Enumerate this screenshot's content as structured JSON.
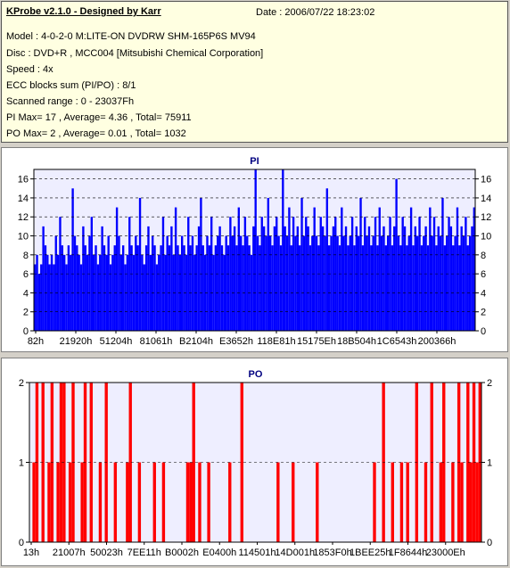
{
  "header": {
    "title": "KProbe v2.1.0 - Designed by Karr",
    "date": "Date : 2006/07/22 18:23:02",
    "lines": [
      "Model : 4-0-2-0 M:LITE-ON DVDRW SHM-165P6S MV94",
      "Disc : DVD+R , MCC004 [Mitsubishi Chemical Corporation]",
      "Speed : 4x",
      "ECC blocks sum (PI/PO) : 8/1",
      "Scanned range : 0 - 23037Fh",
      "PI Max= 17 , Average= 4.36 , Total= 75911",
      "PO Max= 2 , Average= 0.01 , Total= 1032"
    ]
  },
  "colors": {
    "pi_bar": "#0000ff",
    "po_bar": "#ff0000",
    "plot_bg": "#eeeeff",
    "grid": "#000000",
    "title": "#000080"
  },
  "chart_data": [
    {
      "type": "bar",
      "title": "PI",
      "ylim": [
        0,
        17
      ],
      "yticks": [
        0,
        2,
        4,
        6,
        8,
        10,
        12,
        14,
        16
      ],
      "xlim": [
        0,
        2293887
      ],
      "xticks": [
        "82h",
        "21920h",
        "51204h",
        "81061h",
        "B2104h",
        "E3652h",
        "118E81h",
        "15175Eh",
        "18B504h",
        "1C6543h",
        "200366h"
      ],
      "grid": "dashed horizontal",
      "series": [
        {
          "values": [
            7,
            8,
            6,
            7,
            11,
            9,
            8,
            7,
            8,
            7,
            10,
            8,
            12,
            9,
            8,
            7,
            9,
            8,
            15,
            10,
            9,
            8,
            7,
            11,
            9,
            8,
            10,
            12,
            8,
            9,
            7,
            8,
            11,
            9,
            8,
            10,
            7,
            8,
            9,
            13,
            10,
            8,
            9,
            7,
            8,
            12,
            9,
            8,
            10,
            9,
            14,
            8,
            7,
            9,
            11,
            8,
            10,
            9,
            7,
            8,
            9,
            12,
            8,
            10,
            9,
            11,
            8,
            13,
            9,
            8,
            10,
            9,
            8,
            12,
            9,
            10,
            8,
            9,
            11,
            14,
            9,
            8,
            10,
            9,
            12,
            8,
            9,
            10,
            11,
            9,
            8,
            10,
            9,
            12,
            10,
            11,
            9,
            13,
            10,
            9,
            12,
            10,
            9,
            8,
            11,
            17,
            10,
            9,
            12,
            11,
            10,
            14,
            10,
            9,
            11,
            12,
            10,
            9,
            17,
            11,
            10,
            13,
            9,
            12,
            10,
            11,
            9,
            14,
            10,
            12,
            11,
            9,
            10,
            13,
            10,
            9,
            12,
            11,
            10,
            15,
            9,
            10,
            11,
            12,
            10,
            9,
            13,
            10,
            11,
            9,
            10,
            12,
            9,
            11,
            10,
            14,
            9,
            12,
            10,
            11,
            9,
            10,
            12,
            9,
            13,
            10,
            11,
            9,
            10,
            12,
            9,
            11,
            16,
            10,
            9,
            12,
            11,
            9,
            10,
            13,
            9,
            11,
            10,
            12,
            9,
            10,
            11,
            9,
            13,
            10,
            12,
            9,
            11,
            10,
            14,
            9,
            10,
            12,
            11,
            9,
            10,
            13,
            9,
            11,
            10,
            12,
            9,
            10,
            11,
            13
          ]
        }
      ]
    },
    {
      "type": "bar",
      "title": "PO",
      "ylim": [
        0,
        2
      ],
      "yticks": [
        0,
        1,
        2
      ],
      "xlim": [
        0,
        2293887
      ],
      "xticks": [
        "13h",
        "21007h",
        "50023h",
        "7EE11h",
        "B0002h",
        "E0400h",
        "114501h",
        "14D001h",
        "1853F0h",
        "1BEE25h",
        "1F8644h",
        "23000Eh"
      ],
      "grid": "dashed horizontal",
      "series": [
        {
          "values": [
            0,
            1,
            2,
            0,
            2,
            0,
            1,
            2,
            0,
            1,
            2,
            2,
            0,
            1,
            2,
            0,
            0,
            1,
            2,
            0,
            2,
            0,
            0,
            1,
            0,
            2,
            0,
            0,
            1,
            0,
            0,
            0,
            1,
            2,
            0,
            0,
            1,
            0,
            0,
            0,
            0,
            1,
            0,
            0,
            1,
            0,
            0,
            0,
            0,
            0,
            0,
            0,
            1,
            1,
            2,
            0,
            1,
            0,
            0,
            1,
            0,
            0,
            0,
            0,
            0,
            0,
            1,
            0,
            0,
            0,
            2,
            0,
            0,
            0,
            0,
            0,
            0,
            0,
            0,
            0,
            0,
            0,
            1,
            0,
            0,
            0,
            0,
            1,
            0,
            0,
            0,
            0,
            0,
            0,
            0,
            1,
            0,
            0,
            0,
            0,
            0,
            0,
            0,
            0,
            0,
            0,
            0,
            0,
            0,
            0,
            0,
            0,
            0,
            0,
            1,
            0,
            0,
            2,
            0,
            0,
            1,
            0,
            0,
            1,
            0,
            1,
            0,
            0,
            2,
            0,
            0,
            1,
            0,
            2,
            0,
            0,
            1,
            2,
            0,
            0,
            1,
            0,
            2,
            1,
            0,
            2,
            1,
            2,
            1,
            2
          ]
        }
      ]
    }
  ]
}
